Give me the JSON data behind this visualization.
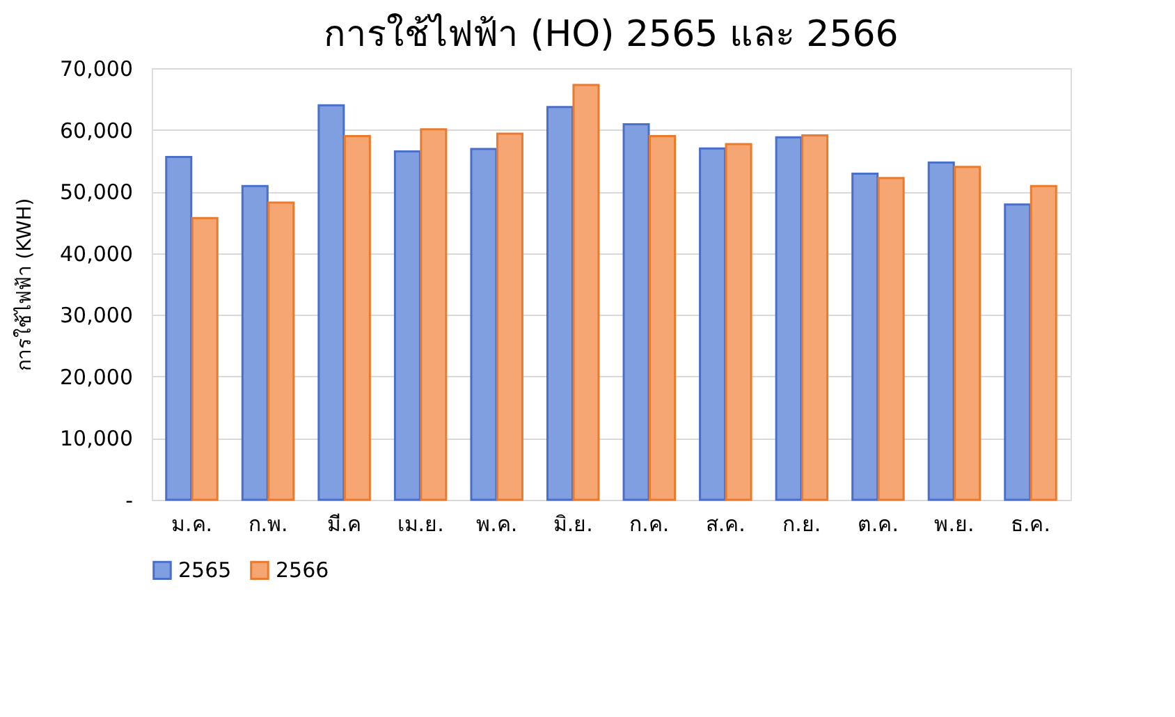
{
  "chart_data": {
    "type": "bar",
    "title": "การใช้ไฟฟ้า (HO) 2565 และ 2566",
    "ylabel": "การใช้ไฟฟ้า (KWH)",
    "categories": [
      "ม.ค.",
      "ก.พ.",
      "มี.ค",
      "เม.ย.",
      "พ.ค.",
      "มิ.ย.",
      "ก.ค.",
      "ส.ค.",
      "ก.ย.",
      "ต.ค.",
      "พ.ย.",
      "ธ.ค."
    ],
    "series": [
      {
        "name": "2565",
        "color": "#7f9fe0",
        "values": [
          55600,
          50900,
          64000,
          56500,
          56900,
          63700,
          60900,
          57000,
          58800,
          52900,
          54700,
          47900
        ]
      },
      {
        "name": "2566",
        "color": "#f6a673",
        "values": [
          45700,
          48200,
          59000,
          60100,
          59400,
          67300,
          59000,
          57700,
          59100,
          52200,
          54000,
          50900
        ]
      }
    ],
    "ylim": [
      0,
      70000
    ],
    "yticks": [
      {
        "value": 0,
        "label": "-"
      },
      {
        "value": 10000,
        "label": "10,000"
      },
      {
        "value": 20000,
        "label": "20,000"
      },
      {
        "value": 30000,
        "label": "30,000"
      },
      {
        "value": 40000,
        "label": "40,000"
      },
      {
        "value": 50000,
        "label": "50,000"
      },
      {
        "value": 60000,
        "label": "60,000"
      },
      {
        "value": 70000,
        "label": "70,000"
      }
    ],
    "grid": "y",
    "legend": "bottom"
  }
}
